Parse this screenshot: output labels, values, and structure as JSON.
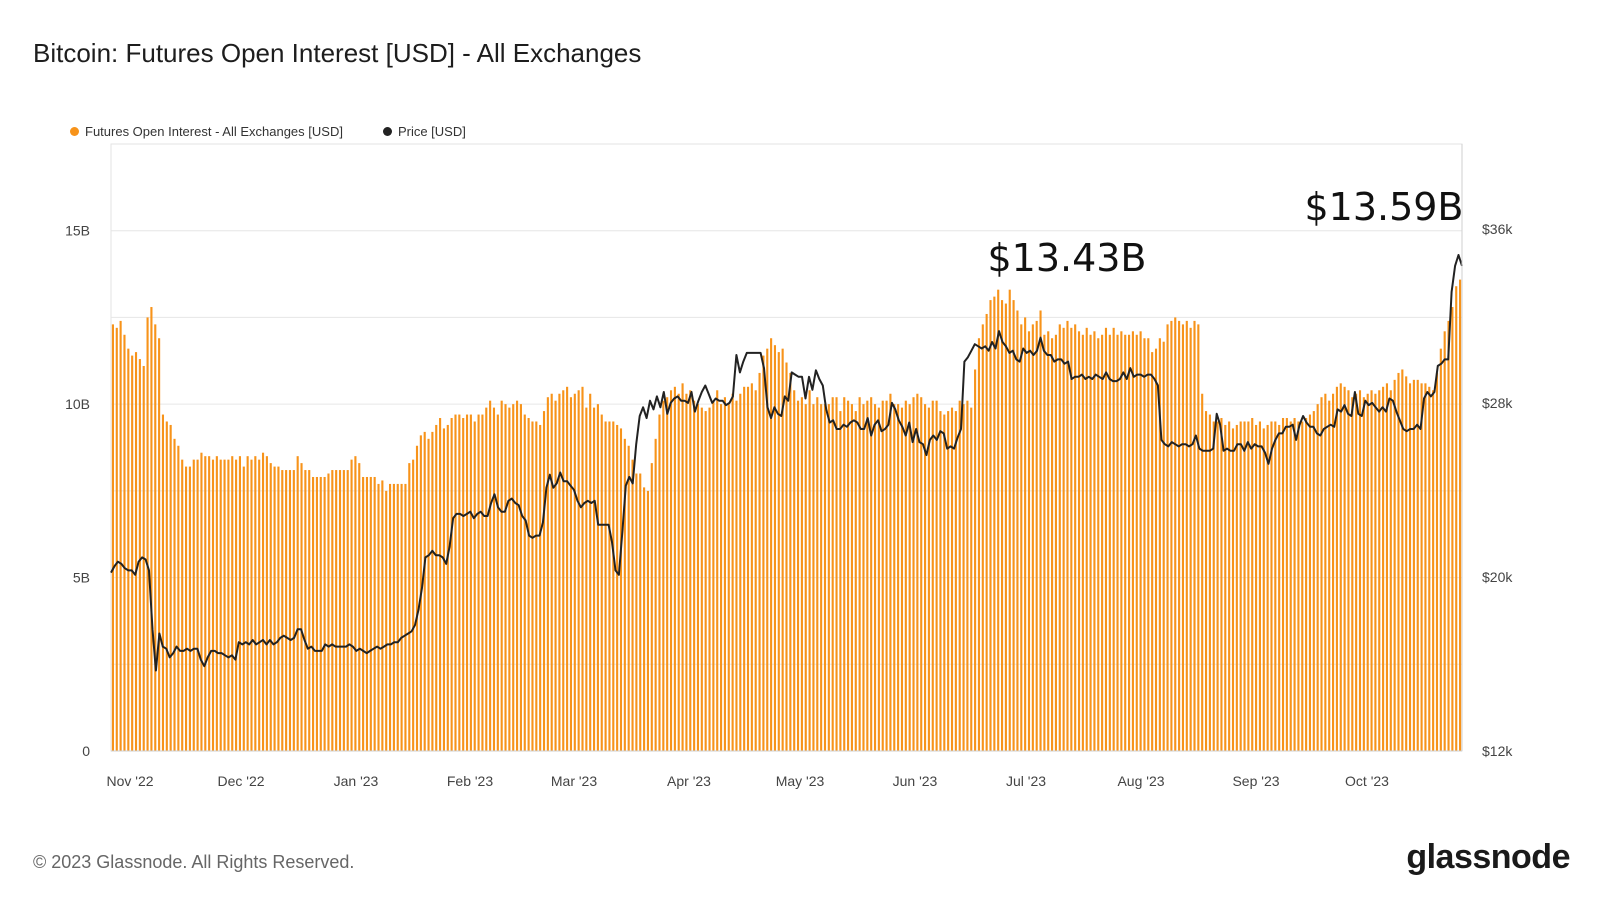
{
  "header": {
    "title": "Bitcoin: Futures Open Interest [USD] - All Exchanges"
  },
  "legend": [
    {
      "label": "Futures Open Interest - All Exchanges [USD]",
      "color": "#f7931a"
    },
    {
      "label": "Price [USD]",
      "color": "#222222"
    }
  ],
  "footer": {
    "copyright": "© 2023 Glassnode. All Rights Reserved.",
    "brand": "glassnode"
  },
  "chart_data": {
    "type": "bar",
    "title": "Bitcoin: Futures Open Interest [USD] - All Exchanges",
    "x_range": [
      "2022-10-29",
      "2023-10-25"
    ],
    "x_ticks": [
      "Nov '22",
      "Dec '22",
      "Jan '23",
      "Feb '23",
      "Mar '23",
      "Apr '23",
      "May '23",
      "Jun '23",
      "Jul '23",
      "Aug '23",
      "Sep '23",
      "Oct '23"
    ],
    "y_left": {
      "ticks": [
        "0",
        "5B",
        "10B",
        "15B"
      ],
      "range": [
        0,
        17500000000
      ],
      "unit": "USD"
    },
    "y_right": {
      "ticks": [
        "$12k",
        "$20k",
        "$28k",
        "$36k"
      ],
      "range": [
        12000,
        39900
      ],
      "unit": "USD"
    },
    "bar_color": "#f7931a",
    "line_color": "#222222",
    "series": [
      {
        "name": "Futures Open Interest - All Exchanges [USD]",
        "type": "bar",
        "unit": "USD billions",
        "values": [
          12.3,
          12.2,
          12.4,
          12.0,
          11.6,
          11.4,
          11.5,
          11.3,
          11.1,
          12.5,
          12.8,
          12.3,
          11.9,
          9.7,
          9.5,
          9.4,
          9.0,
          8.8,
          8.4,
          8.2,
          8.2,
          8.4,
          8.4,
          8.6,
          8.5,
          8.5,
          8.4,
          8.5,
          8.4,
          8.4,
          8.4,
          8.5,
          8.4,
          8.5,
          8.2,
          8.5,
          8.4,
          8.5,
          8.4,
          8.6,
          8.5,
          8.3,
          8.2,
          8.2,
          8.1,
          8.1,
          8.1,
          8.1,
          8.5,
          8.3,
          8.1,
          8.1,
          7.9,
          7.9,
          7.9,
          7.9,
          8.0,
          8.1,
          8.1,
          8.1,
          8.1,
          8.1,
          8.4,
          8.5,
          8.3,
          7.9,
          7.9,
          7.9,
          7.9,
          7.7,
          7.8,
          7.5,
          7.7,
          7.7,
          7.7,
          7.7,
          7.7,
          8.3,
          8.4,
          8.8,
          9.1,
          9.2,
          9.0,
          9.2,
          9.4,
          9.6,
          9.3,
          9.4,
          9.6,
          9.7,
          9.7,
          9.6,
          9.7,
          9.7,
          9.5,
          9.7,
          9.7,
          9.9,
          10.1,
          9.9,
          9.7,
          10.1,
          10.0,
          9.9,
          10.0,
          10.1,
          10.0,
          9.7,
          9.6,
          9.5,
          9.5,
          9.4,
          9.8,
          10.2,
          10.3,
          10.1,
          10.3,
          10.4,
          10.5,
          10.2,
          10.3,
          10.4,
          10.5,
          9.9,
          10.3,
          9.9,
          10.0,
          9.7,
          9.5,
          9.5,
          9.5,
          9.4,
          9.3,
          9.0,
          8.8,
          8.4,
          8.0,
          8.0,
          7.6,
          7.5,
          8.3,
          9.0,
          9.7,
          10.1,
          10.2,
          10.4,
          10.5,
          10.3,
          10.6,
          10.3,
          10.4,
          10.1,
          10.0,
          9.9,
          9.8,
          9.9,
          10.1,
          10.4,
          10.0,
          10.2,
          10.0,
          10.3,
          10.1,
          10.3,
          10.5,
          10.5,
          10.6,
          10.4,
          10.9,
          11.4,
          11.6,
          11.9,
          11.7,
          11.5,
          11.6,
          11.2,
          10.9,
          10.4,
          10.1,
          10.2,
          10.0,
          10.4,
          10.0,
          10.2,
          10.0,
          10.0,
          10.0,
          10.2,
          10.2,
          9.8,
          10.2,
          10.1,
          10.0,
          9.8,
          10.2,
          10.0,
          10.1,
          10.2,
          10.0,
          9.9,
          10.1,
          10.1,
          10.3,
          10.0,
          10.0,
          9.9,
          10.1,
          10.0,
          10.2,
          10.3,
          10.2,
          10.0,
          9.9,
          10.1,
          10.1,
          9.8,
          9.7,
          9.8,
          9.9,
          9.8,
          10.1,
          10.0,
          10.1,
          9.9,
          11.0,
          11.9,
          12.3,
          12.6,
          13.0,
          13.1,
          13.3,
          13.0,
          12.9,
          13.3,
          13.0,
          12.7,
          12.3,
          12.5,
          12.1,
          12.3,
          12.4,
          12.7,
          12.0,
          12.1,
          11.9,
          12.0,
          12.3,
          12.2,
          12.4,
          12.2,
          12.3,
          12.1,
          12.0,
          12.2,
          12.0,
          12.1,
          11.9,
          12.0,
          12.2,
          12.0,
          12.2,
          12.0,
          12.1,
          12.0,
          12.0,
          12.1,
          12.0,
          12.1,
          11.9,
          11.9,
          11.5,
          11.6,
          11.9,
          11.8,
          12.3,
          12.4,
          12.5,
          12.4,
          12.3,
          12.4,
          12.2,
          12.4,
          12.3,
          10.3,
          9.8,
          9.7,
          9.5,
          9.5,
          9.6,
          9.4,
          9.5,
          9.3,
          9.4,
          9.5,
          9.5,
          9.5,
          9.6,
          9.4,
          9.5,
          9.3,
          9.4,
          9.5,
          9.5,
          9.4,
          9.6,
          9.6,
          9.5,
          9.6,
          9.5,
          9.5,
          9.6,
          9.7,
          9.8,
          10.0,
          10.2,
          10.3,
          10.1,
          10.3,
          10.5,
          10.6,
          10.5,
          10.4,
          10.2,
          10.3,
          10.4,
          10.2,
          10.3,
          10.4,
          10.3,
          10.4,
          10.5,
          10.6,
          10.4,
          10.7,
          10.9,
          11.0,
          10.8,
          10.6,
          10.7,
          10.7,
          10.6,
          10.6,
          10.5,
          10.4,
          10.9,
          11.6,
          12.1,
          12.4,
          12.8,
          13.4,
          13.59
        ]
      },
      {
        "name": "Price [USD]",
        "type": "line",
        "unit": "USD",
        "values": [
          20200,
          20500,
          20700,
          20600,
          20400,
          20300,
          20300,
          20100,
          20700,
          20900,
          20800,
          20300,
          17600,
          15700,
          17400,
          16800,
          16700,
          16300,
          16500,
          16800,
          16600,
          16600,
          16700,
          16600,
          16700,
          16700,
          16200,
          15900,
          16300,
          16600,
          16600,
          16500,
          16500,
          16400,
          16300,
          16400,
          16200,
          17000,
          16900,
          17000,
          16900,
          17100,
          16900,
          17000,
          17100,
          16900,
          17100,
          16900,
          17000,
          17200,
          17300,
          17200,
          17100,
          17200,
          17600,
          17600,
          17100,
          16700,
          16800,
          16600,
          16600,
          16600,
          16900,
          16800,
          16900,
          16800,
          16800,
          16800,
          16800,
          16900,
          16800,
          16600,
          16700,
          16600,
          16500,
          16600,
          16700,
          16800,
          16700,
          16800,
          16900,
          16900,
          17000,
          17000,
          17200,
          17300,
          17400,
          17500,
          17800,
          18500,
          19500,
          20900,
          21000,
          21200,
          21000,
          21000,
          20900,
          20600,
          21400,
          22700,
          22900,
          22900,
          22800,
          22900,
          23000,
          22700,
          22900,
          23000,
          22800,
          22800,
          23400,
          23800,
          23200,
          23000,
          23000,
          23500,
          23600,
          23400,
          23300,
          22800,
          22600,
          21900,
          21800,
          21900,
          21900,
          22500,
          24100,
          24700,
          24100,
          24300,
          24800,
          24400,
          24400,
          24200,
          24000,
          23500,
          23200,
          23400,
          23500,
          23400,
          23500,
          22400,
          22400,
          22400,
          22400,
          21600,
          20300,
          20100,
          22100,
          24200,
          24600,
          24300,
          26100,
          27400,
          27800,
          27300,
          28100,
          27700,
          28300,
          27800,
          28500,
          27500,
          28000,
          28200,
          28300,
          28100,
          28100,
          28000,
          28500,
          27600,
          28100,
          28500,
          28800,
          28400,
          28000,
          28200,
          28100,
          28100,
          27900,
          28000,
          28300,
          30200,
          29400,
          29900,
          30300,
          30300,
          30300,
          30300,
          30300,
          29600,
          27800,
          27300,
          27800,
          27500,
          27400,
          28300,
          28100,
          29400,
          29300,
          29200,
          29200,
          28200,
          29200,
          28600,
          29500,
          29100,
          28800,
          27700,
          27100,
          27200,
          26800,
          26800,
          27000,
          26900,
          27100,
          27200,
          27100,
          26800,
          26800,
          27300,
          26500,
          27000,
          27200,
          26700,
          26800,
          27000,
          28000,
          27700,
          27200,
          26900,
          26500,
          27100,
          26200,
          26800,
          26200,
          26100,
          25600,
          26300,
          26500,
          26300,
          26700,
          26600,
          25900,
          26000,
          25900,
          26400,
          26800,
          29900,
          30100,
          30400,
          30700,
          30600,
          30500,
          30600,
          30400,
          30800,
          30500,
          31300,
          30800,
          30600,
          30300,
          30400,
          30000,
          29900,
          30500,
          30300,
          30400,
          30200,
          30400,
          31000,
          30400,
          30200,
          30200,
          29900,
          30000,
          30000,
          29800,
          29900,
          29100,
          29200,
          29200,
          29300,
          29100,
          29200,
          29100,
          29300,
          29200,
          29100,
          29400,
          29100,
          29000,
          29000,
          29100,
          29400,
          29100,
          29600,
          29200,
          29300,
          29300,
          29200,
          29300,
          29300,
          29100,
          28800,
          26300,
          26100,
          26000,
          26200,
          26100,
          26000,
          26100,
          26100,
          26000,
          26100,
          26500,
          25900,
          25800,
          25800,
          25800,
          25900,
          27500,
          27000,
          25800,
          25900,
          25800,
          25800,
          26100,
          26100,
          25800,
          26200,
          25900,
          26100,
          26000,
          26000,
          25700,
          25200,
          25900,
          26300,
          26600,
          26600,
          26900,
          26900,
          27000,
          26300,
          27000,
          27400,
          27100,
          26900,
          26900,
          26600,
          26500,
          26800,
          26900,
          27000,
          26900,
          27700,
          27600,
          27900,
          27500,
          27400,
          28500,
          27500,
          27400,
          28100,
          27900,
          28000,
          27800,
          27600,
          27800,
          27600,
          28200,
          28100,
          27600,
          27200,
          26800,
          26700,
          26800,
          26800,
          27000,
          26800,
          28200,
          28500,
          28300,
          28500,
          29700,
          29800,
          30000,
          30000,
          33100,
          34300,
          34800,
          34300
        ]
      }
    ],
    "annotations": [
      "$13.43B",
      "$13.59B"
    ]
  }
}
